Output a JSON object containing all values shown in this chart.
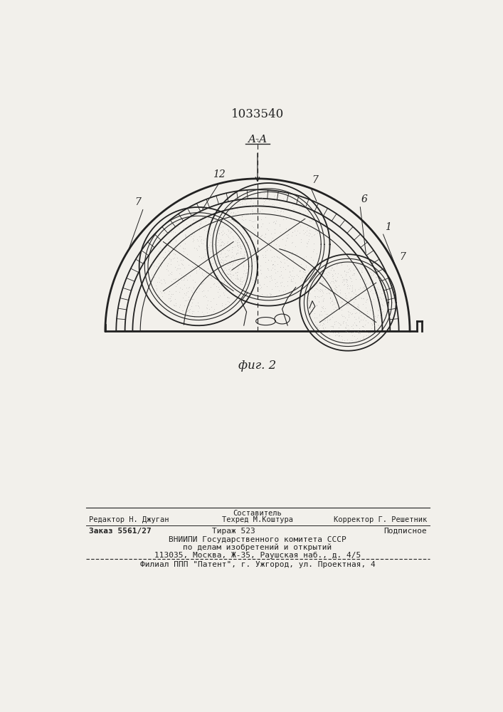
{
  "patent_number": "1033540",
  "fig_label": "фиг. 2",
  "section_label": "A-A",
  "bg_color": "#f2f0eb",
  "line_color": "#222222",
  "footer_line1_left": "Редактор Н. Джуган",
  "footer_line1_center_title": "Составитель",
  "footer_line1_center": "Техред М.Коштура",
  "footer_line1_right": "Корректор Г. Решетник",
  "footer_line2_left": "Заказ 5561/27",
  "footer_line2_center": "Тираж 523",
  "footer_line2_right": "Подписное",
  "footer_line3": "ВНИИПИ Государственного комитета СССР",
  "footer_line4": "по делам изобретений и открытий",
  "footer_line5": "113035, Москва, Ж-35, Раушская наб., д. 4/5",
  "footer_line6": "Филиал ППП \"Патент\", г. Ужгород, ул. Проектная, 4"
}
